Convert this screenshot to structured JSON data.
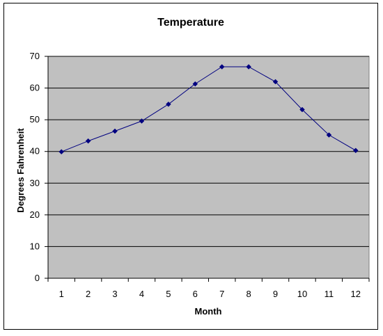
{
  "chart_data": {
    "type": "line",
    "title": "Temperature",
    "xlabel": "Month",
    "ylabel": "Degrees Fahrenheit",
    "categories": [
      "1",
      "2",
      "3",
      "4",
      "5",
      "6",
      "7",
      "8",
      "9",
      "10",
      "11",
      "12"
    ],
    "series": [
      {
        "values": [
          39.9,
          43.3,
          46.4,
          49.6,
          54.9,
          61.3,
          66.7,
          66.7,
          62.0,
          53.2,
          45.2,
          40.3
        ]
      }
    ],
    "ylim": [
      0,
      70
    ],
    "yticks": [
      "0",
      "10",
      "20",
      "30",
      "40",
      "50",
      "60",
      "70"
    ],
    "grid": true,
    "legend": "none",
    "colors": {
      "plot_background": "#c0c0c0",
      "series": "#000080",
      "gridline": "#000000"
    }
  }
}
